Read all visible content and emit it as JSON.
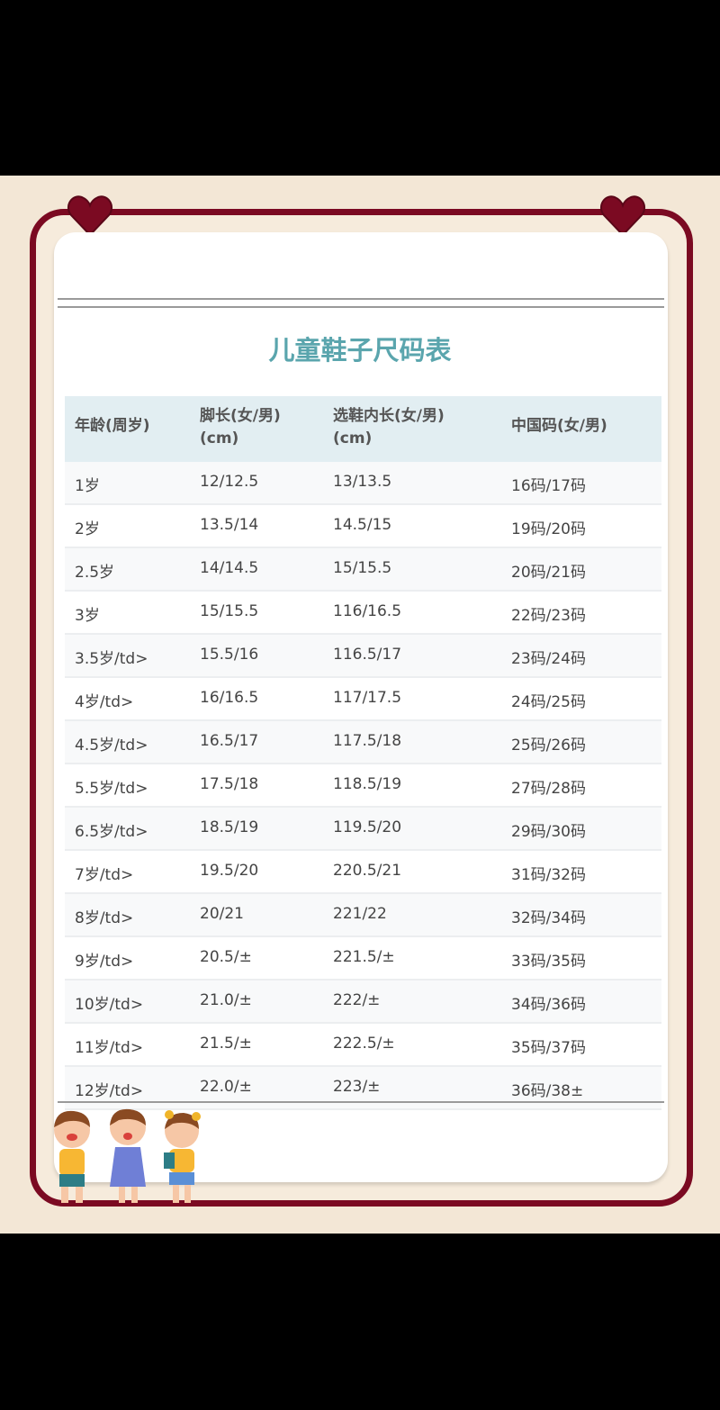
{
  "title": "儿童鞋子尺码表",
  "colors": {
    "frame": "#7b0a22",
    "title": "#5aa5ad",
    "header_bg": "#e2eef2"
  },
  "headers": [
    [
      "年龄(周岁)",
      ""
    ],
    [
      "脚长(女/男)",
      "(cm)"
    ],
    [
      "选鞋内长(女/男)",
      "(cm)"
    ],
    [
      "中国码(女/男)",
      ""
    ]
  ],
  "rows": [
    [
      "1岁",
      "12/12.5",
      "13/13.5",
      "16码/17码"
    ],
    [
      "2岁",
      "13.5/14",
      "14.5/15",
      "19码/20码"
    ],
    [
      "2.5岁",
      "14/14.5",
      "15/15.5",
      "20码/21码"
    ],
    [
      "3岁",
      "15/15.5",
      "116/16.5",
      "22码/23码"
    ],
    [
      "3.5岁/td>",
      "15.5/16",
      "116.5/17",
      "23码/24码"
    ],
    [
      "4岁/td>",
      "16/16.5",
      "117/17.5",
      "24码/25码"
    ],
    [
      "4.5岁/td>",
      "16.5/17",
      "117.5/18",
      "25码/26码"
    ],
    [
      "5.5岁/td>",
      "17.5/18",
      "118.5/19",
      "27码/28码"
    ],
    [
      "6.5岁/td>",
      "18.5/19",
      "119.5/20",
      "29码/30码"
    ],
    [
      "7岁/td>",
      "19.5/20",
      "220.5/21",
      "31码/32码"
    ],
    [
      "8岁/td>",
      "20/21",
      "221/22",
      "32码/34码"
    ],
    [
      "9岁/td>",
      "20.5/±",
      "221.5/±",
      "33码/35码"
    ],
    [
      "10岁/td>",
      "21.0/±",
      "222/±",
      "34码/36码"
    ],
    [
      "11岁/td>",
      "21.5/±",
      "222.5/±",
      "35码/37码"
    ],
    [
      "12岁/td>",
      "22.0/±",
      "223/±",
      "36码/38±"
    ]
  ],
  "icons": [
    "heart-icon",
    "kids-illustration"
  ]
}
